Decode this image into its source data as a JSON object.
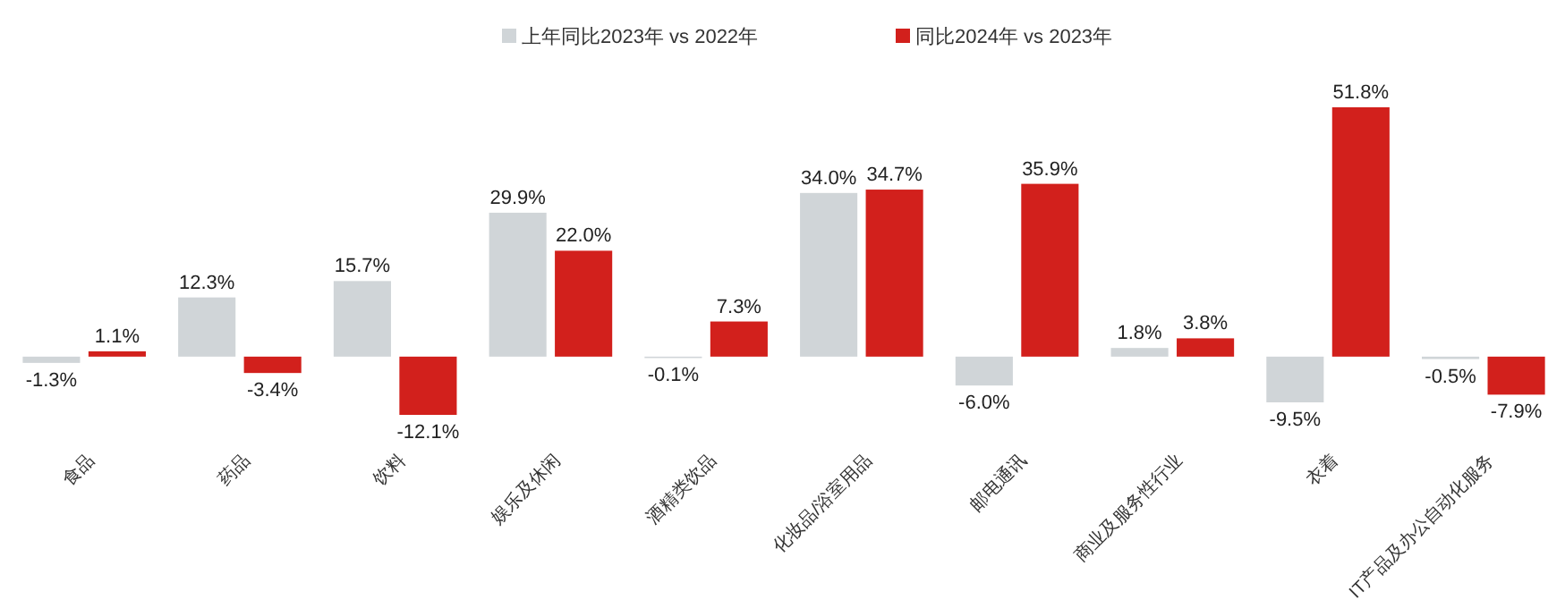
{
  "chart_data": {
    "type": "bar",
    "categories": [
      "食品",
      "药品",
      "饮料",
      "娱乐及休闲",
      "酒精类饮品",
      "化妆品/浴室用品",
      "邮电通讯",
      "商业及服务性行业",
      "衣着",
      "IT产品及办公自动化服务"
    ],
    "series": [
      {
        "name": "上年同比2023年 vs 2022年",
        "color": "#d0d5d8",
        "values": [
          -1.3,
          12.3,
          15.7,
          29.9,
          -0.1,
          34.0,
          -6.0,
          1.8,
          -9.5,
          -0.5
        ],
        "value_labels": [
          "-1.3%",
          "12.3%",
          "15.7%",
          "29.9%",
          "-0.1%",
          "34.0%",
          "-6.0%",
          "1.8%",
          "-9.5%",
          "-0.5%"
        ]
      },
      {
        "name": "同比2024年 vs 2023年",
        "color": "#d2201c",
        "values": [
          1.1,
          -3.4,
          -12.1,
          22.0,
          7.3,
          34.7,
          35.9,
          3.8,
          51.8,
          -7.9
        ],
        "value_labels": [
          "1.1%",
          "-3.4%",
          "-12.1%",
          "22.0%",
          "7.3%",
          "34.7%",
          "35.9%",
          "3.8%",
          "51.8%",
          "-7.9%"
        ]
      }
    ],
    "legend": "top",
    "tick_labels": "x"
  }
}
